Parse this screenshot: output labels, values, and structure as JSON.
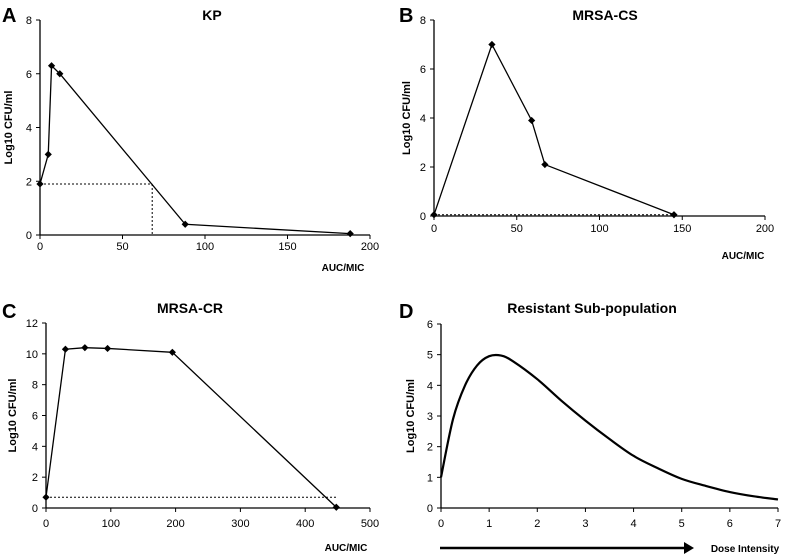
{
  "chart_data": [
    {
      "type": "line",
      "panel": "A",
      "title": "KP",
      "xlabel": "AUC/MIC",
      "ylabel": "Log10 CFU/ml",
      "xlim": [
        0,
        200
      ],
      "ylim": [
        0,
        8
      ],
      "xticks": [
        0,
        50,
        100,
        150,
        200
      ],
      "yticks": [
        0,
        2,
        4,
        6,
        8
      ],
      "series": [
        {
          "name": "KP",
          "x": [
            0,
            5,
            7,
            12,
            88,
            188
          ],
          "y": [
            1.9,
            3.0,
            6.3,
            6.0,
            0.4,
            0.05
          ]
        }
      ],
      "reference": {
        "x": 68,
        "y": 1.9,
        "description": "dotted line from y-axis at the starting value to the curve, then down to the x-axis"
      }
    },
    {
      "type": "line",
      "panel": "B",
      "title": "MRSA-CS",
      "xlabel": "AUC/MIC",
      "ylabel": "Log10 CFU/ml",
      "xlim": [
        0,
        200
      ],
      "ylim": [
        0,
        8
      ],
      "xticks": [
        0,
        50,
        100,
        150,
        200
      ],
      "yticks": [
        0,
        2,
        4,
        6,
        8
      ],
      "series": [
        {
          "name": "MRSA-CS",
          "x": [
            0,
            35,
            59,
            67,
            145
          ],
          "y": [
            0.05,
            7.0,
            3.9,
            2.1,
            0.05
          ]
        }
      ],
      "reference": {
        "x": 145,
        "y": 0.05,
        "description": "dotted baseline at the starting value"
      }
    },
    {
      "type": "line",
      "panel": "C",
      "title": "MRSA-CR",
      "xlabel": "AUC/MIC",
      "ylabel": "Log10 CFU/ml",
      "xlim": [
        0,
        500
      ],
      "ylim": [
        0,
        12
      ],
      "xticks": [
        0,
        100,
        200,
        300,
        400,
        500
      ],
      "yticks": [
        0,
        2,
        4,
        6,
        8,
        10,
        12
      ],
      "series": [
        {
          "name": "MRSA-CR",
          "x": [
            0,
            30,
            60,
            95,
            195,
            448
          ],
          "y": [
            0.7,
            10.3,
            10.4,
            10.35,
            10.1,
            0.05
          ]
        }
      ],
      "reference": {
        "x": 448,
        "y": 0.7,
        "description": "dotted line from y-axis at the starting value to the curve"
      }
    },
    {
      "type": "line",
      "panel": "D",
      "title": "Resistant Sub-population",
      "xlabel": "Dose Intensity",
      "ylabel": "Log10 CFU/ml",
      "xlim": [
        0,
        7
      ],
      "ylim": [
        0,
        6
      ],
      "xticks": [
        0,
        1,
        2,
        3,
        4,
        5,
        6,
        7
      ],
      "yticks": [
        0,
        1,
        2,
        3,
        4,
        5,
        6
      ],
      "series": [
        {
          "name": "Resistant Sub-population",
          "smooth": true,
          "x": [
            0,
            0.25,
            0.5,
            0.75,
            1.0,
            1.25,
            1.5,
            2.0,
            2.5,
            3.0,
            3.5,
            4.0,
            4.5,
            5.0,
            5.5,
            6.0,
            6.5,
            7.0
          ],
          "y": [
            1.0,
            2.9,
            4.0,
            4.65,
            4.95,
            4.97,
            4.78,
            4.2,
            3.5,
            2.85,
            2.25,
            1.7,
            1.3,
            0.95,
            0.72,
            0.52,
            0.38,
            0.28
          ]
        }
      ]
    }
  ]
}
